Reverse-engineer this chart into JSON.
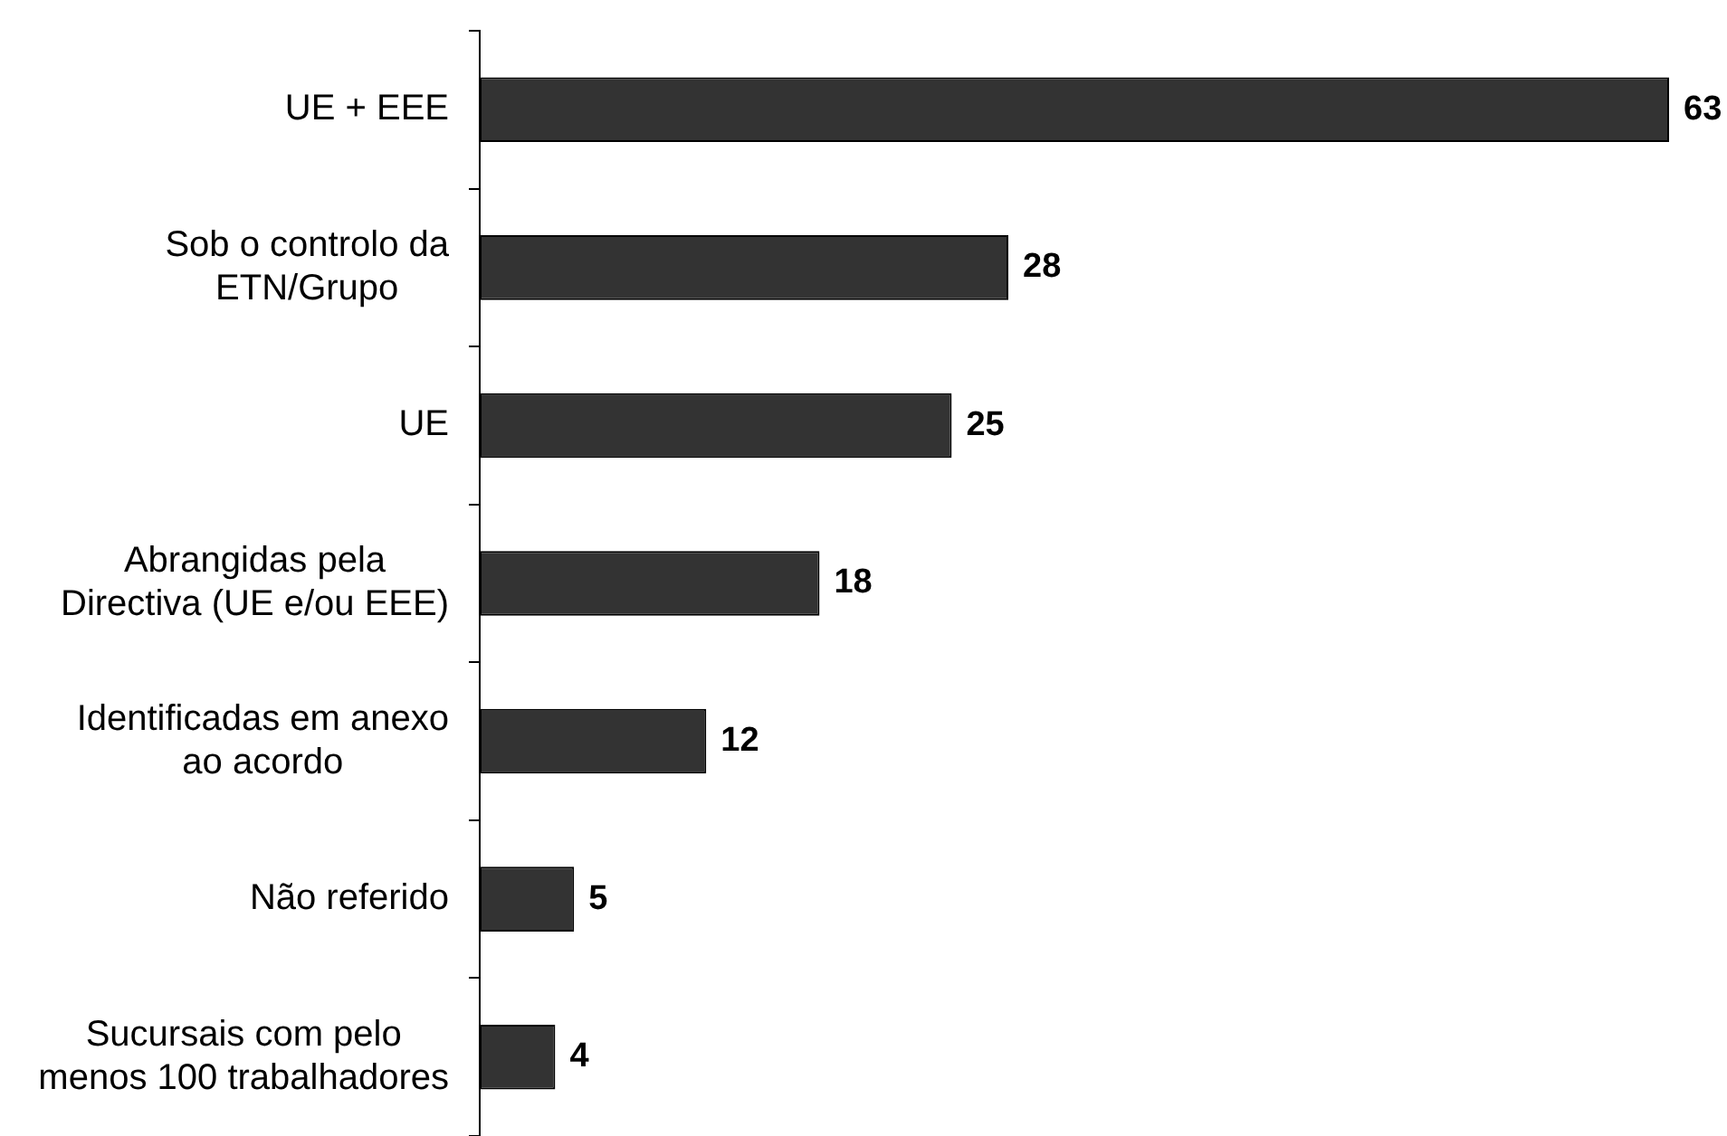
{
  "chart_data": {
    "type": "bar",
    "orientation": "horizontal",
    "categories": [
      "UE + EEE",
      "Sob o controlo da\nETN/Grupo",
      "UE",
      "Abrangidas pela\nDirectiva (UE e/ou EEE)",
      "Identificadas em anexo\nao acordo",
      "Não referido",
      "Sucursais com pelo\nmenos 100 trabalhadores"
    ],
    "values": [
      63,
      28,
      25,
      18,
      12,
      5,
      4
    ],
    "color": "#333333",
    "data_labels": true,
    "tick_labels": "y"
  }
}
